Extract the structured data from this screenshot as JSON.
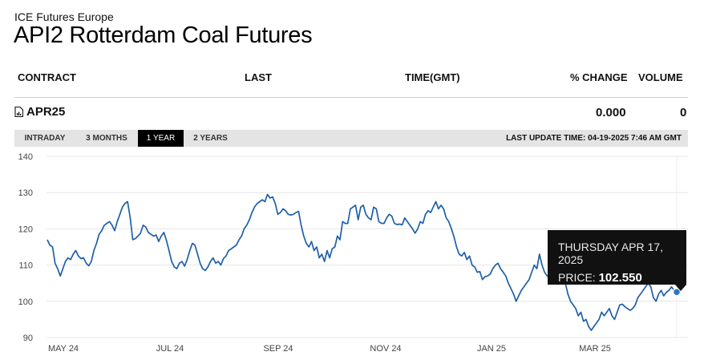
{
  "header": {
    "exchange": "ICE Futures Europe",
    "title": "API2 Rotterdam Coal Futures"
  },
  "table": {
    "columns": [
      "CONTRACT",
      "LAST",
      "TIME(GMT)",
      "% CHANGE",
      "VOLUME"
    ],
    "row": {
      "contract": "APR25",
      "last": "",
      "time": "",
      "change": "0.000",
      "volume": "0"
    }
  },
  "tabs": [
    {
      "label": "INTRADAY",
      "active": false
    },
    {
      "label": "3 MONTHS",
      "active": false
    },
    {
      "label": "1 YEAR",
      "active": true
    },
    {
      "label": "2 YEARS",
      "active": false
    }
  ],
  "last_update": "LAST UPDATE TIME: 04-19-2025 7:46 AM GMT",
  "tooltip": {
    "date": "THURSDAY APR 17, 2025",
    "price_label": "PRICE:",
    "price_value": "102.550"
  },
  "colors": {
    "line": "#1f5fa6",
    "marker": "#2f74c0",
    "tab_active_bg": "#000000",
    "tabbar_bg": "#e4e4e4"
  },
  "icons": {
    "contract": "document-chart-icon"
  },
  "chart_data": {
    "type": "line",
    "ylim": [
      90,
      140
    ],
    "yticks": [
      90,
      100,
      110,
      120,
      130,
      140
    ],
    "xlim": [
      "2025-04-19 (year earlier)",
      "2025-04-19"
    ],
    "xticks": [
      "MAY 24",
      "JUL 24",
      "SEP 24",
      "NOV 24",
      "JAN 25",
      "MAR 25"
    ],
    "grid": true,
    "series": [
      {
        "values": [
          117,
          115.5,
          115,
          110.5,
          109,
          107,
          109,
          111,
          112,
          111.5,
          113,
          114,
          112.5,
          111.8,
          112,
          110.5,
          109.8,
          111,
          114,
          116,
          118.5,
          119.5,
          121,
          121.5,
          122,
          121,
          119.5,
          122,
          124,
          126,
          127,
          127.5,
          123,
          117,
          117.3,
          118,
          118.8,
          121,
          120.5,
          119,
          118.5,
          118,
          118.3,
          116.5,
          118,
          119,
          116.8,
          114,
          111,
          109.5,
          109,
          110.5,
          111,
          109.7,
          111.5,
          114,
          116,
          115.5,
          113,
          110.5,
          109,
          108.5,
          109.5,
          111,
          112,
          110.5,
          111,
          110,
          111.8,
          112.5,
          114,
          114.5,
          115,
          115.5,
          117,
          118,
          120,
          121,
          122.5,
          124.5,
          126,
          127,
          127.5,
          128,
          127.5,
          129.5,
          128.5,
          128.8,
          127,
          124,
          124.5,
          125.5,
          125,
          124,
          123.8,
          124,
          124.5,
          124.8,
          121,
          118,
          116,
          115,
          116.5,
          114,
          115,
          112,
          113,
          111,
          114,
          112,
          114.5,
          115,
          118,
          117,
          122,
          121.5,
          121.5,
          125.5,
          126,
          126.5,
          122.5,
          126,
          126.5,
          124,
          123,
          122.5,
          126,
          125.5,
          122,
          121.5,
          121.5,
          123,
          124,
          123.5,
          121.5,
          121.2,
          121.3,
          121.1,
          123,
          122,
          121,
          120,
          118.8,
          120,
          122,
          121.5,
          124,
          125,
          124.5,
          126,
          127.5,
          125.5,
          126.5,
          125.5,
          123,
          122,
          120,
          117.8,
          115,
          113,
          112.5,
          113.5,
          111.5,
          112.5,
          110,
          109.5,
          108,
          108.2,
          106,
          106.8,
          107,
          107.5,
          109,
          110,
          110.5,
          109,
          108,
          107,
          105,
          103.5,
          102,
          100,
          101.5,
          103,
          104,
          105,
          106,
          108,
          110,
          109,
          113,
          110,
          108,
          107,
          106.5,
          108,
          109,
          110.5,
          109,
          107,
          105,
          102,
          100,
          99,
          98,
          96,
          97,
          94.5,
          95,
          93,
          92,
          93,
          94,
          95,
          97,
          96,
          97,
          98,
          96,
          95,
          97,
          99,
          99.2,
          98.5,
          98,
          97.5,
          98,
          99,
          101,
          102,
          103,
          104,
          105,
          104,
          101,
          100,
          102,
          103,
          101.5,
          102.5,
          103,
          104,
          103,
          102.55
        ]
      }
    ]
  }
}
